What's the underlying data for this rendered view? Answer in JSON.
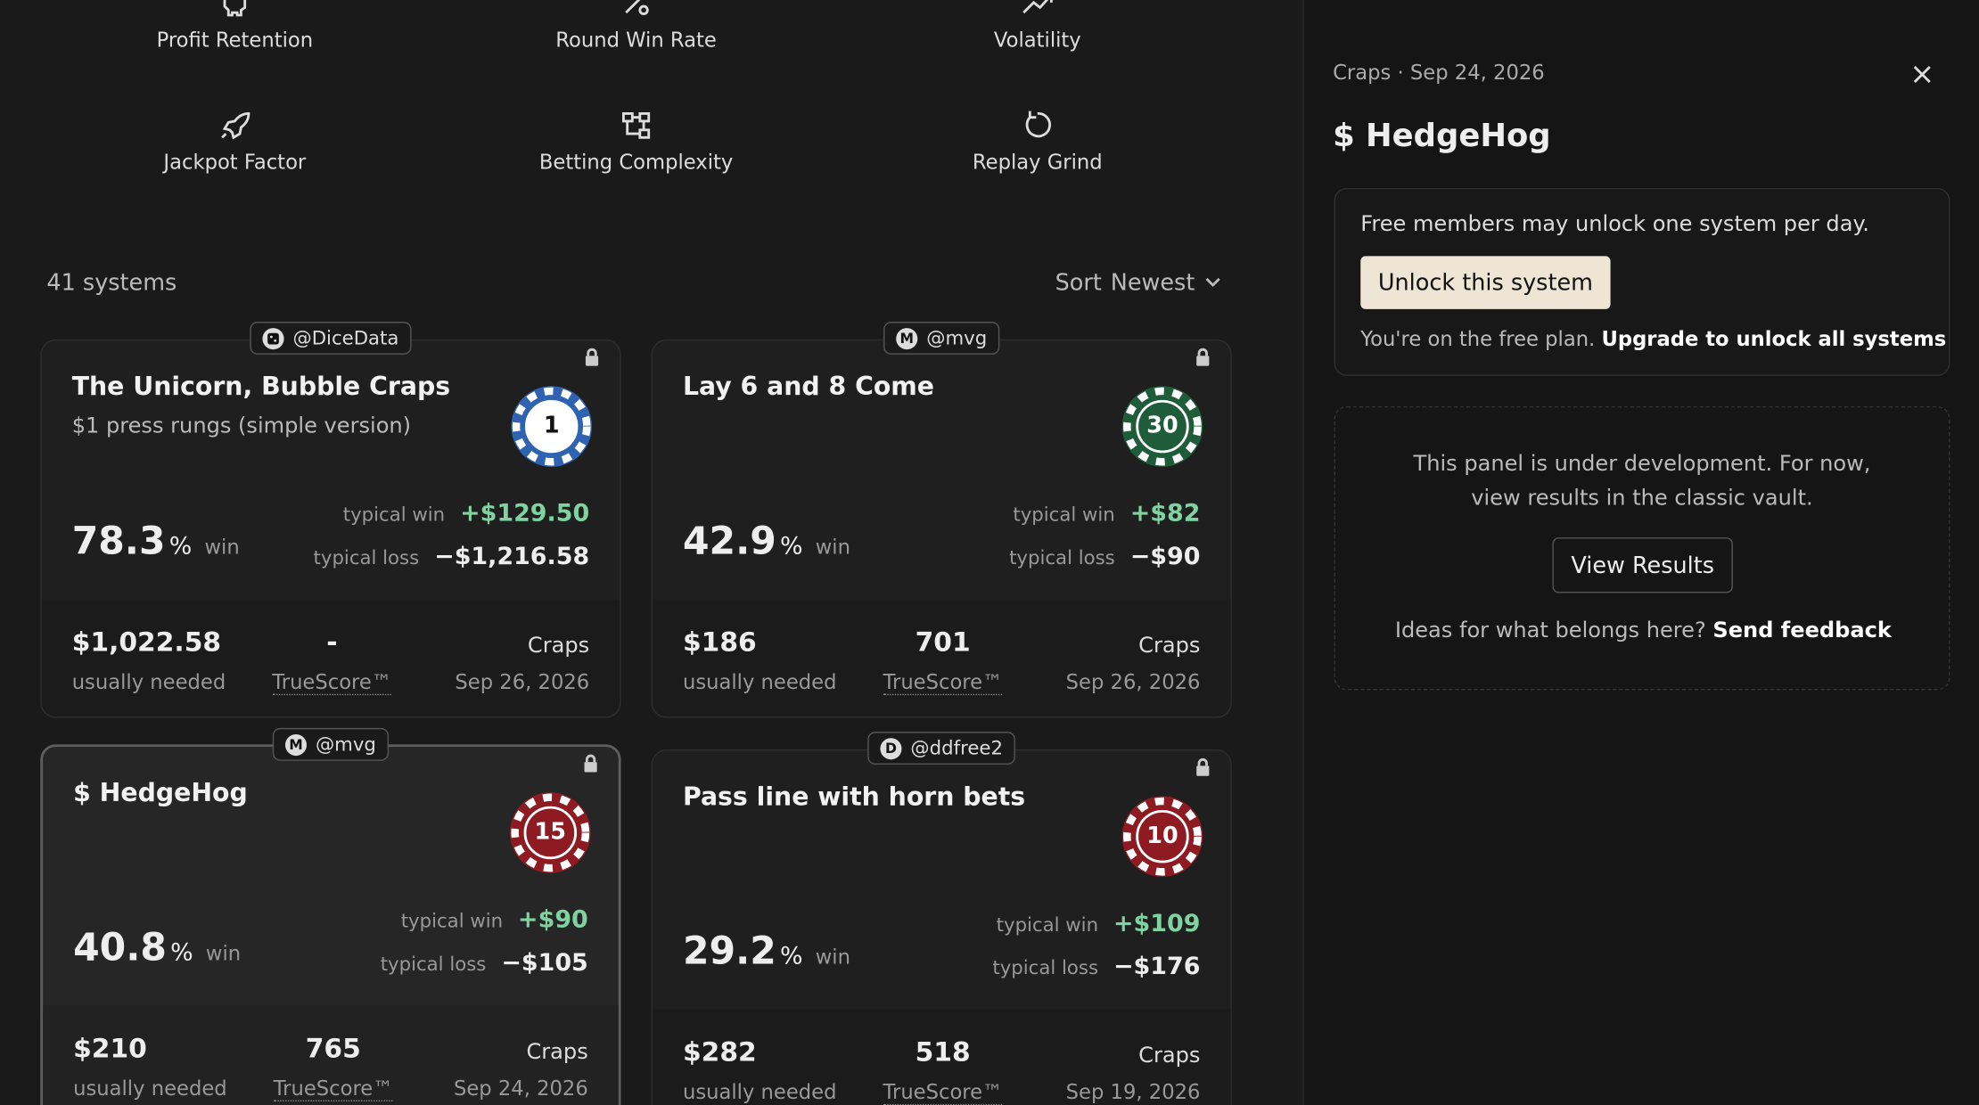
{
  "filters": [
    {
      "label": "Profit Retention"
    },
    {
      "label": "Round Win Rate"
    },
    {
      "label": "Volatility"
    },
    {
      "label": "Jackpot Factor"
    },
    {
      "label": "Betting Complexity"
    },
    {
      "label": "Replay Grind"
    }
  ],
  "list": {
    "count": "41 systems",
    "sort_label": "Sort",
    "sort_value": "Newest"
  },
  "card_labels": {
    "win_unit": "%",
    "win": "win",
    "typical_win": "typical win",
    "typical_loss": "typical loss",
    "needed": "usually needed",
    "truescore": "TrueScore™"
  },
  "cards": [
    {
      "author": "@DiceData",
      "title": "The Unicorn, Bubble Craps",
      "subtitle": "$1 press rungs (simple version)",
      "chip": {
        "label": "1",
        "color": "#2f62b0",
        "face": "#ffffff"
      },
      "win": "78.3",
      "typical_win": "+$129.50",
      "typical_loss": "−$1,216.58",
      "needed": "$1,022.58",
      "truescore": "-",
      "game": "Craps",
      "date": "Sep 26, 2026"
    },
    {
      "author": "@mvg",
      "initial": "M",
      "title": "Lay 6 and 8 Come",
      "chip": {
        "label": "30",
        "color": "#1f5c3a",
        "face": "#1f5c3a"
      },
      "win": "42.9",
      "typical_win": "+$82",
      "typical_loss": "−$90",
      "needed": "$186",
      "truescore": "701",
      "game": "Craps",
      "date": "Sep 26, 2026"
    },
    {
      "author": "@mvg",
      "initial": "M",
      "title": "$ HedgeHog",
      "chip": {
        "label": "15",
        "color": "#8e1b22",
        "face": "#8e1b22"
      },
      "win": "40.8",
      "typical_win": "+$90",
      "typical_loss": "−$105",
      "needed": "$210",
      "truescore": "765",
      "game": "Craps",
      "date": "Sep 24, 2026"
    },
    {
      "author": "@ddfree2",
      "initial": "D",
      "title": "Pass line with horn bets",
      "chip": {
        "label": "10",
        "color": "#8e1b22",
        "face": "#8e1b22"
      },
      "win": "29.2",
      "typical_win": "+$109",
      "typical_loss": "−$176",
      "needed": "$282",
      "truescore": "518",
      "game": "Craps",
      "date": "Sep 19, 2026"
    }
  ],
  "panel": {
    "meta": "Craps · Sep 24, 2026",
    "title": "$ HedgeHog",
    "notice": "Free members may unlock one system per day.",
    "unlock": "Unlock this system",
    "plan": "You're on the free plan.",
    "upgrade": "Upgrade to unlock all systems",
    "dev_text": "This panel is under development. For now, view results in the classic vault.",
    "view": "View Results",
    "ideas": "Ideas for what belongs here?",
    "feedback": "Send feedback"
  }
}
